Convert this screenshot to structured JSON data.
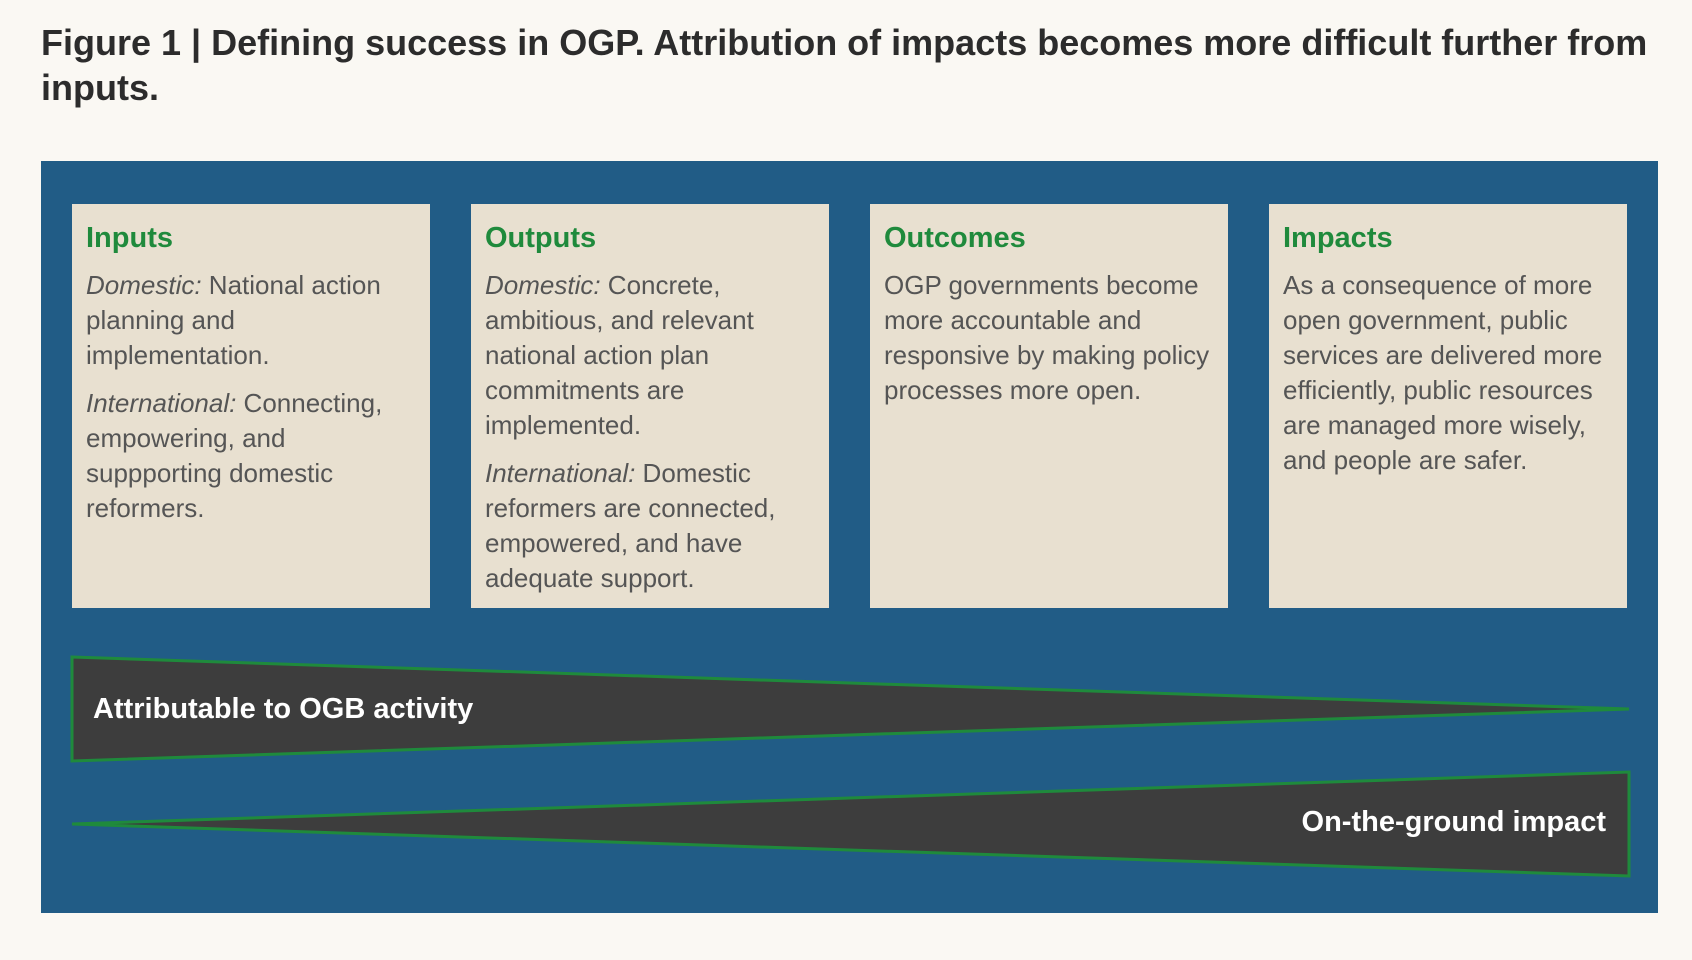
{
  "figure": {
    "title": "Figure 1 | Defining success in OGP. Attribution of impacts becomes more difficult further from inputs."
  },
  "boxes": [
    {
      "heading": "Inputs",
      "paragraphs": [
        {
          "lead": "Domestic:",
          "text": " National action planning and implementation."
        },
        {
          "lead": "International:",
          "text": " Connecting, empowering, and suppporting domestic reformers."
        }
      ]
    },
    {
      "heading": "Outputs",
      "paragraphs": [
        {
          "lead": "Domestic:",
          "text": " Concrete, ambitious, and relevant national action plan commitments are implemented."
        },
        {
          "lead": "International:",
          "text": " Domestic reformers are connected, empowered, and have adequate support."
        }
      ]
    },
    {
      "heading": "Outcomes",
      "paragraphs": [
        {
          "lead": "",
          "text": "OGP governments become more accountable and responsive by making policy processes more open."
        }
      ]
    },
    {
      "heading": "Impacts",
      "paragraphs": [
        {
          "lead": "",
          "text": "As a consequence of more open government, public services are delivered more efficiently, public resources are managed more wisely, and people are safer."
        }
      ]
    }
  ],
  "wedges": {
    "top_label": "Attributable to OGB activity",
    "bottom_label": "On-the-ground impact"
  },
  "colors": {
    "background": "#faf8f3",
    "panel": "#215c86",
    "box": "#e8e0d0",
    "heading": "#1f8a3c",
    "body_text": "#555555",
    "wedge_fill": "#3d3d3d",
    "wedge_stroke": "#1f8a3c"
  }
}
